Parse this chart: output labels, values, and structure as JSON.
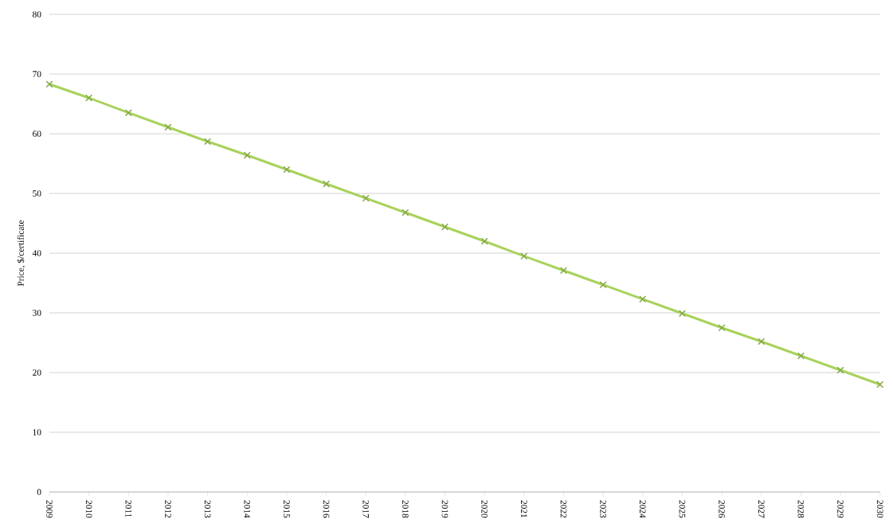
{
  "chart_data": {
    "type": "line",
    "ylabel": "Price, $/certificate",
    "categories": [
      "2009",
      "2010",
      "2011",
      "2012",
      "2013",
      "2014",
      "2015",
      "2016",
      "2017",
      "2018",
      "2019",
      "2020",
      "2021",
      "2022",
      "2023",
      "2024",
      "2025",
      "2026",
      "2027",
      "2028",
      "2029",
      "2030"
    ],
    "values": [
      68.3,
      66,
      63.5,
      61.1,
      58.7,
      56.4,
      54,
      51.6,
      49.2,
      46.8,
      44.4,
      42,
      39.5,
      37.1,
      34.7,
      32.3,
      29.9,
      27.5,
      25.2,
      22.8,
      20.4,
      18
    ],
    "color": "#a8d25a",
    "marker": "cross",
    "ylim": [
      0,
      80
    ],
    "yticks": [
      0,
      10,
      20,
      30,
      40,
      50,
      60,
      70,
      80
    ],
    "grid": "y"
  }
}
